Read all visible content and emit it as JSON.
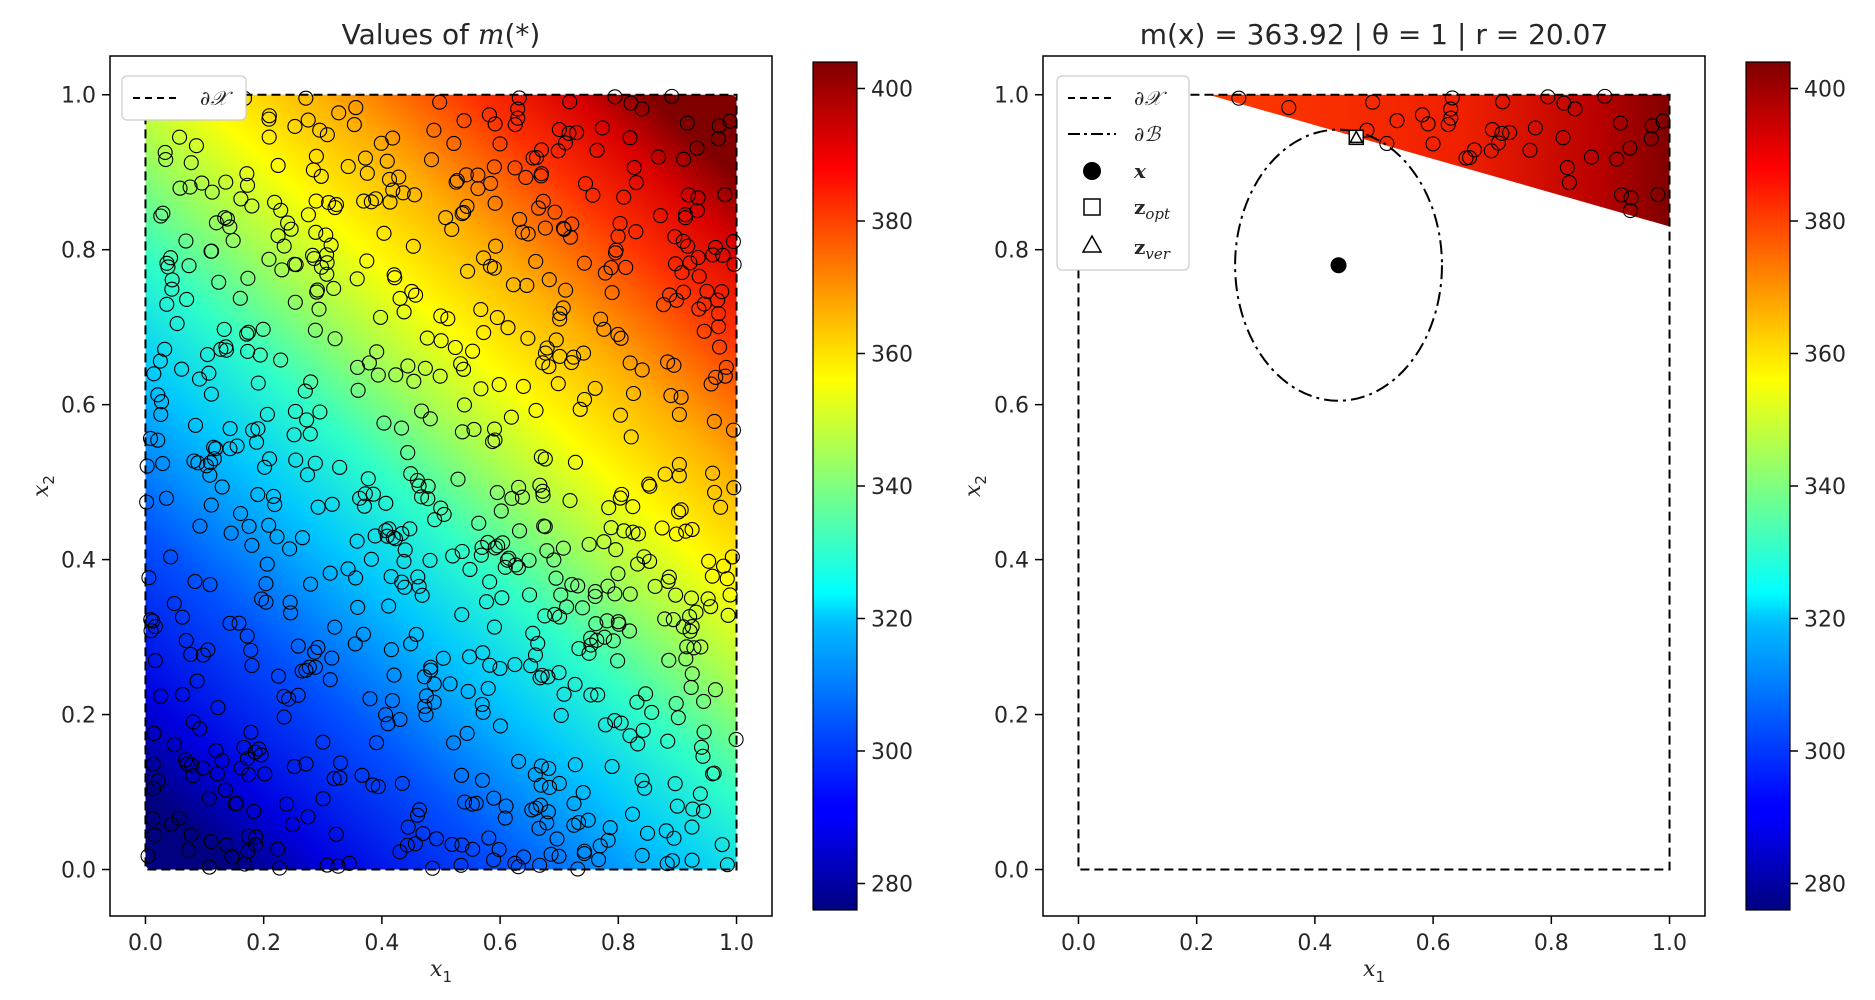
{
  "chart_data": [
    {
      "type": "scatter",
      "title": "Values of m(*)",
      "xlabel": "x1",
      "ylabel": "x2",
      "xlim": [
        -0.06,
        1.06
      ],
      "ylim": [
        -0.06,
        1.05
      ],
      "xticks": [
        "0.0",
        "0.2",
        "0.4",
        "0.6",
        "0.8",
        "1.0"
      ],
      "yticks": [
        "0.0",
        "0.2",
        "0.4",
        "0.6",
        "0.8",
        "1.0"
      ],
      "heatmap_region": "full unit square",
      "colormap": "jet",
      "colorbar": {
        "min": 276,
        "max": 404,
        "ticks": [
          "280",
          "300",
          "320",
          "340",
          "360",
          "380",
          "400"
        ]
      },
      "legend": {
        "placement": "top-left",
        "entries": [
          {
            "label": "∂𝒳",
            "style": "dashed"
          }
        ]
      },
      "points_note": "approximately 800 hollow circular sample points scattered uniformly over the unit square"
    },
    {
      "type": "scatter",
      "title": "m(x) = 363.92 | θ = 1 | r = 20.07",
      "xlabel": "x1",
      "ylabel": "x2",
      "xlim": [
        -0.06,
        1.06
      ],
      "ylim": [
        -0.06,
        1.05
      ],
      "xticks": [
        "0.0",
        "0.2",
        "0.4",
        "0.6",
        "0.8",
        "1.0"
      ],
      "yticks": [
        "0.0",
        "0.2",
        "0.4",
        "0.6",
        "0.8",
        "1.0"
      ],
      "colormap": "jet",
      "colorbar": {
        "min": 276,
        "max": 404,
        "ticks": [
          "280",
          "300",
          "320",
          "340",
          "360",
          "380",
          "400"
        ]
      },
      "feasible_region": {
        "line_from": [
          0.22,
          1.0
        ],
        "line_to": [
          1.0,
          0.83
        ]
      },
      "point_x": [
        0.44,
        0.78
      ],
      "z_opt": [
        0.47,
        0.945
      ],
      "z_ver": [
        0.47,
        0.945
      ],
      "ellipse_B": {
        "center": [
          0.44,
          0.78
        ],
        "rx": 0.175,
        "ry": 0.175
      },
      "legend": {
        "placement": "top-left",
        "entries": [
          {
            "label": "∂𝒳",
            "style": "dashed"
          },
          {
            "label": "∂ℬ",
            "style": "dashdot"
          },
          {
            "label": "x",
            "style": "filled-circle"
          },
          {
            "label": "z",
            "sub": "opt",
            "style": "square"
          },
          {
            "label": "z",
            "sub": "ver",
            "style": "triangle"
          }
        ]
      }
    }
  ]
}
